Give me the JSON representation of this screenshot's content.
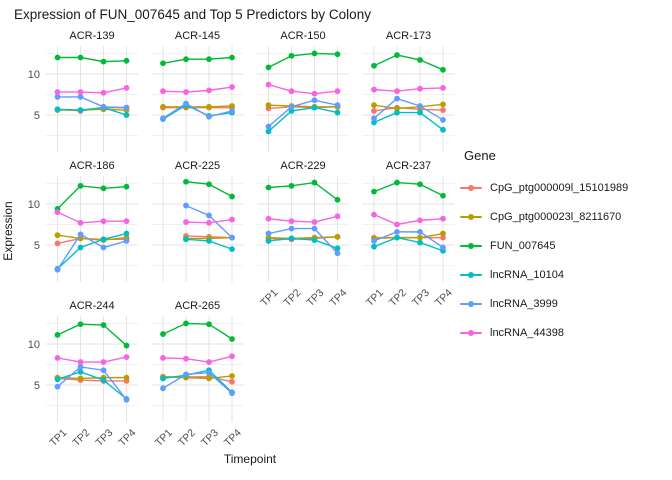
{
  "title": "Expression of FUN_007645 and Top 5 Predictors by Colony",
  "axes": {
    "x_title": "Timepoint",
    "y_title": "Expression",
    "x_ticks": [
      "TP1",
      "TP2",
      "TP3",
      "TP4"
    ],
    "y_ticks": [
      5,
      10
    ]
  },
  "legend": {
    "title": "Gene"
  },
  "colors": {
    "grid_major": "#e3e3e3",
    "grid_minor": "#f1f1f1",
    "axis_text": "#4d4d4d",
    "strip_text": "#1a1a1a"
  },
  "chart_data": {
    "type": "line",
    "title": "Expression of FUN_007645 and Top 5 Predictors by Colony",
    "xlabel": "Timepoint",
    "ylabel": "Expression",
    "x": [
      "TP1",
      "TP2",
      "TP3",
      "TP4"
    ],
    "ylim": [
      0.5,
      13.4
    ],
    "y_major_gridlines": [
      5,
      10
    ],
    "y_minor_gridlines": [
      2.5,
      7.5,
      12.5
    ],
    "grid": true,
    "legend_position": "right",
    "facet_by": "Colony",
    "genes": [
      {
        "name": "CpG_ptg000009l_15101989",
        "color": "#F8766D"
      },
      {
        "name": "CpG_ptg000023l_8211670",
        "color": "#B79F00"
      },
      {
        "name": "FUN_007645",
        "color": "#00BA38"
      },
      {
        "name": "lncRNA_10104",
        "color": "#00BFC4"
      },
      {
        "name": "lncRNA_3999",
        "color": "#619CFF"
      },
      {
        "name": "lncRNA_44398",
        "color": "#F564E3"
      }
    ],
    "facets": [
      {
        "colony": "ACR-139",
        "values": {
          "CpG_ptg000009l_15101989": [
            5.7,
            5.5,
            5.9,
            5.9
          ],
          "CpG_ptg000023l_8211670": [
            5.6,
            5.6,
            5.7,
            5.6
          ],
          "FUN_007645": [
            12.0,
            12.0,
            11.5,
            11.6
          ],
          "lncRNA_10104": [
            5.7,
            5.6,
            5.9,
            5.0
          ],
          "lncRNA_3999": [
            7.2,
            7.2,
            6.0,
            5.9
          ],
          "lncRNA_44398": [
            7.8,
            7.8,
            7.7,
            8.3
          ]
        }
      },
      {
        "colony": "ACR-145",
        "values": {
          "CpG_ptg000009l_15101989": [
            5.9,
            5.9,
            5.9,
            5.9
          ],
          "CpG_ptg000023l_8211670": [
            6.0,
            6.0,
            6.0,
            6.1
          ],
          "FUN_007645": [
            11.3,
            11.8,
            11.8,
            12.0
          ],
          "lncRNA_10104": [
            4.5,
            6.2,
            4.9,
            5.3
          ],
          "lncRNA_3999": [
            4.6,
            6.4,
            4.8,
            5.5
          ],
          "lncRNA_44398": [
            7.9,
            7.8,
            8.0,
            8.4
          ]
        }
      },
      {
        "colony": "ACR-150",
        "values": {
          "CpG_ptg000009l_15101989": [
            5.8,
            6.0,
            5.9,
            6.0
          ],
          "CpG_ptg000023l_8211670": [
            6.2,
            6.1,
            6.0,
            6.0
          ],
          "FUN_007645": [
            10.8,
            12.2,
            12.5,
            12.4
          ],
          "lncRNA_10104": [
            3.0,
            5.5,
            5.9,
            5.3
          ],
          "lncRNA_3999": [
            3.6,
            6.0,
            6.8,
            6.2
          ],
          "lncRNA_44398": [
            8.7,
            7.9,
            7.6,
            7.9
          ]
        }
      },
      {
        "colony": "ACR-173",
        "values": {
          "CpG_ptg000009l_15101989": [
            5.5,
            5.9,
            5.7,
            5.6
          ],
          "CpG_ptg000023l_8211670": [
            6.2,
            5.8,
            6.0,
            6.3
          ],
          "FUN_007645": [
            11.0,
            12.3,
            11.7,
            10.5
          ],
          "lncRNA_10104": [
            4.1,
            5.3,
            5.3,
            3.2
          ],
          "lncRNA_3999": [
            4.6,
            7.0,
            6.1,
            4.4
          ],
          "lncRNA_44398": [
            8.1,
            7.9,
            8.2,
            8.3
          ]
        }
      },
      {
        "colony": "ACR-186",
        "values": {
          "CpG_ptg000009l_15101989": [
            5.2,
            5.8,
            5.7,
            5.7
          ],
          "CpG_ptg000023l_8211670": [
            6.2,
            5.8,
            5.6,
            5.9
          ],
          "FUN_007645": [
            9.4,
            12.2,
            11.9,
            12.1
          ],
          "lncRNA_10104": [
            2.1,
            4.7,
            5.7,
            6.4
          ],
          "lncRNA_3999": [
            2.0,
            6.3,
            4.7,
            5.5
          ],
          "lncRNA_44398": [
            9.0,
            7.7,
            7.9,
            7.9
          ]
        }
      },
      {
        "colony": "ACR-225",
        "values": {
          "CpG_ptg000009l_15101989": [
            null,
            6.1,
            6.0,
            5.9
          ],
          "CpG_ptg000023l_8211670": [
            null,
            5.8,
            5.8,
            5.9
          ],
          "FUN_007645": [
            null,
            12.7,
            12.4,
            10.9
          ],
          "lncRNA_10104": [
            null,
            5.7,
            5.5,
            4.5
          ],
          "lncRNA_3999": [
            null,
            9.8,
            8.6,
            5.9
          ],
          "lncRNA_44398": [
            null,
            7.8,
            7.7,
            8.1
          ]
        }
      },
      {
        "colony": "ACR-229",
        "values": {
          "CpG_ptg000009l_15101989": [
            5.8,
            5.7,
            5.8,
            6.0
          ],
          "CpG_ptg000023l_8211670": [
            5.9,
            5.8,
            5.9,
            6.0
          ],
          "FUN_007645": [
            12.0,
            12.2,
            12.6,
            10.5
          ],
          "lncRNA_10104": [
            5.5,
            5.8,
            5.6,
            4.6
          ],
          "lncRNA_3999": [
            6.4,
            7.0,
            7.0,
            4.0
          ],
          "lncRNA_44398": [
            8.2,
            7.9,
            7.8,
            8.5
          ]
        }
      },
      {
        "colony": "ACR-237",
        "values": {
          "CpG_ptg000009l_15101989": [
            5.9,
            5.9,
            5.9,
            5.9
          ],
          "CpG_ptg000023l_8211670": [
            5.8,
            5.9,
            5.9,
            6.4
          ],
          "FUN_007645": [
            11.5,
            12.6,
            12.4,
            11.0
          ],
          "lncRNA_10104": [
            4.8,
            5.9,
            5.3,
            4.3
          ],
          "lncRNA_3999": [
            5.5,
            6.6,
            6.6,
            4.7
          ],
          "lncRNA_44398": [
            8.7,
            7.5,
            8.0,
            8.2
          ]
        }
      },
      {
        "colony": "ACR-244",
        "values": {
          "CpG_ptg000009l_15101989": [
            5.8,
            5.6,
            5.5,
            5.5
          ],
          "CpG_ptg000023l_8211670": [
            5.9,
            5.8,
            5.9,
            5.9
          ],
          "FUN_007645": [
            11.1,
            12.4,
            12.3,
            9.8
          ],
          "lncRNA_10104": [
            5.7,
            6.6,
            5.6,
            3.3
          ],
          "lncRNA_3999": [
            4.8,
            7.2,
            6.8,
            3.2
          ],
          "lncRNA_44398": [
            8.3,
            7.8,
            7.8,
            8.4
          ]
        }
      },
      {
        "colony": "ACR-265",
        "values": {
          "CpG_ptg000009l_15101989": [
            6.0,
            6.0,
            6.0,
            5.4
          ],
          "CpG_ptg000023l_8211670": [
            6.0,
            5.9,
            5.8,
            6.1
          ],
          "FUN_007645": [
            11.2,
            12.5,
            12.4,
            10.6
          ],
          "lncRNA_10104": [
            5.8,
            6.2,
            6.8,
            4.1
          ],
          "lncRNA_3999": [
            4.6,
            6.3,
            6.5,
            4.0
          ],
          "lncRNA_44398": [
            8.3,
            8.2,
            7.8,
            8.5
          ]
        }
      }
    ]
  }
}
